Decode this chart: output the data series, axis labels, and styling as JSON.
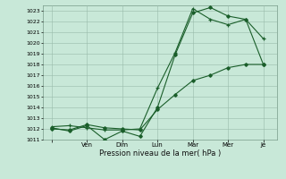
{
  "xlabel": "Pression niveau de la mer( hPa )",
  "ylim": [
    1011,
    1023.5
  ],
  "yticks": [
    1011,
    1012,
    1013,
    1014,
    1015,
    1016,
    1017,
    1018,
    1019,
    1020,
    1021,
    1022,
    1023
  ],
  "bg_color": "#c8e8d8",
  "grid_color": "#99bbaa",
  "line_color": "#1a5e2a",
  "xtick_positions": [
    0,
    2,
    4,
    6,
    8,
    10,
    12
  ],
  "xtick_labels": [
    "",
    "Ven",
    "Dim",
    "Lun",
    "Mar",
    "Mer",
    "Je"
  ],
  "xlim": [
    -0.5,
    12.8
  ],
  "line1_x": [
    0,
    1,
    2,
    3,
    4,
    5,
    6,
    7,
    8,
    9,
    10,
    11,
    12
  ],
  "line1_y": [
    1012.0,
    1011.9,
    1012.4,
    1012.1,
    1012.0,
    1011.9,
    1013.8,
    1015.2,
    1016.5,
    1017.0,
    1017.7,
    1018.0,
    1018.0
  ],
  "line2_x": [
    0,
    1,
    2,
    3,
    4,
    5,
    6,
    7,
    8,
    9,
    10,
    11,
    12
  ],
  "line2_y": [
    1012.1,
    1011.8,
    1012.3,
    1011.0,
    1011.8,
    1011.3,
    1014.0,
    1018.9,
    1022.8,
    1023.3,
    1022.5,
    1022.2,
    1018.0
  ],
  "line3_x": [
    0,
    1,
    2,
    3,
    4,
    5,
    6,
    7,
    8,
    9,
    10,
    11,
    12
  ],
  "line3_y": [
    1012.2,
    1012.3,
    1012.1,
    1011.9,
    1011.9,
    1012.0,
    1015.8,
    1019.1,
    1023.2,
    1022.2,
    1021.7,
    1022.2,
    1020.4
  ]
}
